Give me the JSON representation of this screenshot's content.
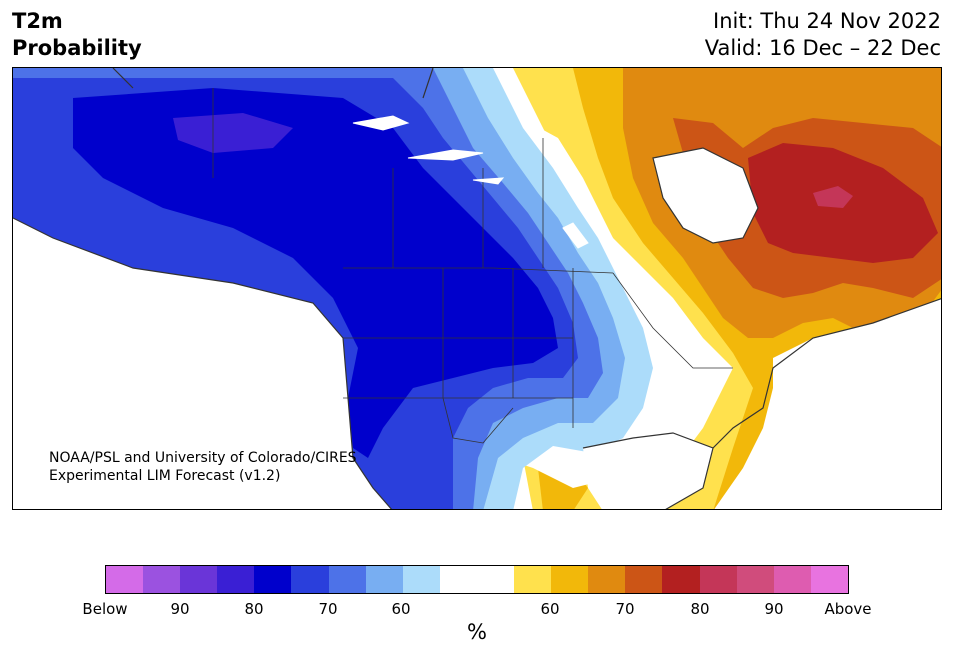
{
  "title": {
    "line1": "T2m",
    "line2": "Probability"
  },
  "header": {
    "init": "Init: Thu 24 Nov 2022",
    "valid": "Valid: 16 Dec – 22 Dec"
  },
  "credit": {
    "line1": "NOAA/PSL and University of Colorado/CIRES",
    "line2": "Experimental LIM Forecast (v1.2)"
  },
  "colorbar": {
    "unit": "%",
    "below_colors": [
      "#d46be8",
      "#9b52e0",
      "#6a35d8",
      "#3a1fd4",
      "#0000cc",
      "#2a3fdc",
      "#4d72e8",
      "#78aef2",
      "#acdcfa"
    ],
    "neutral_color": "#ffffff",
    "above_colors": [
      "#ffe14d",
      "#f2b80a",
      "#e08a10",
      "#cc5516",
      "#b32020",
      "#c43658",
      "#d04c7c",
      "#de5cb0",
      "#e873e0"
    ],
    "tick_labels": [
      "Below",
      "90",
      "80",
      "70",
      "60",
      "60",
      "70",
      "80",
      "90",
      "Above"
    ]
  },
  "map": {
    "land_color": "#ffffff",
    "border_color": "#333333",
    "lake_color": "#ffffff"
  }
}
